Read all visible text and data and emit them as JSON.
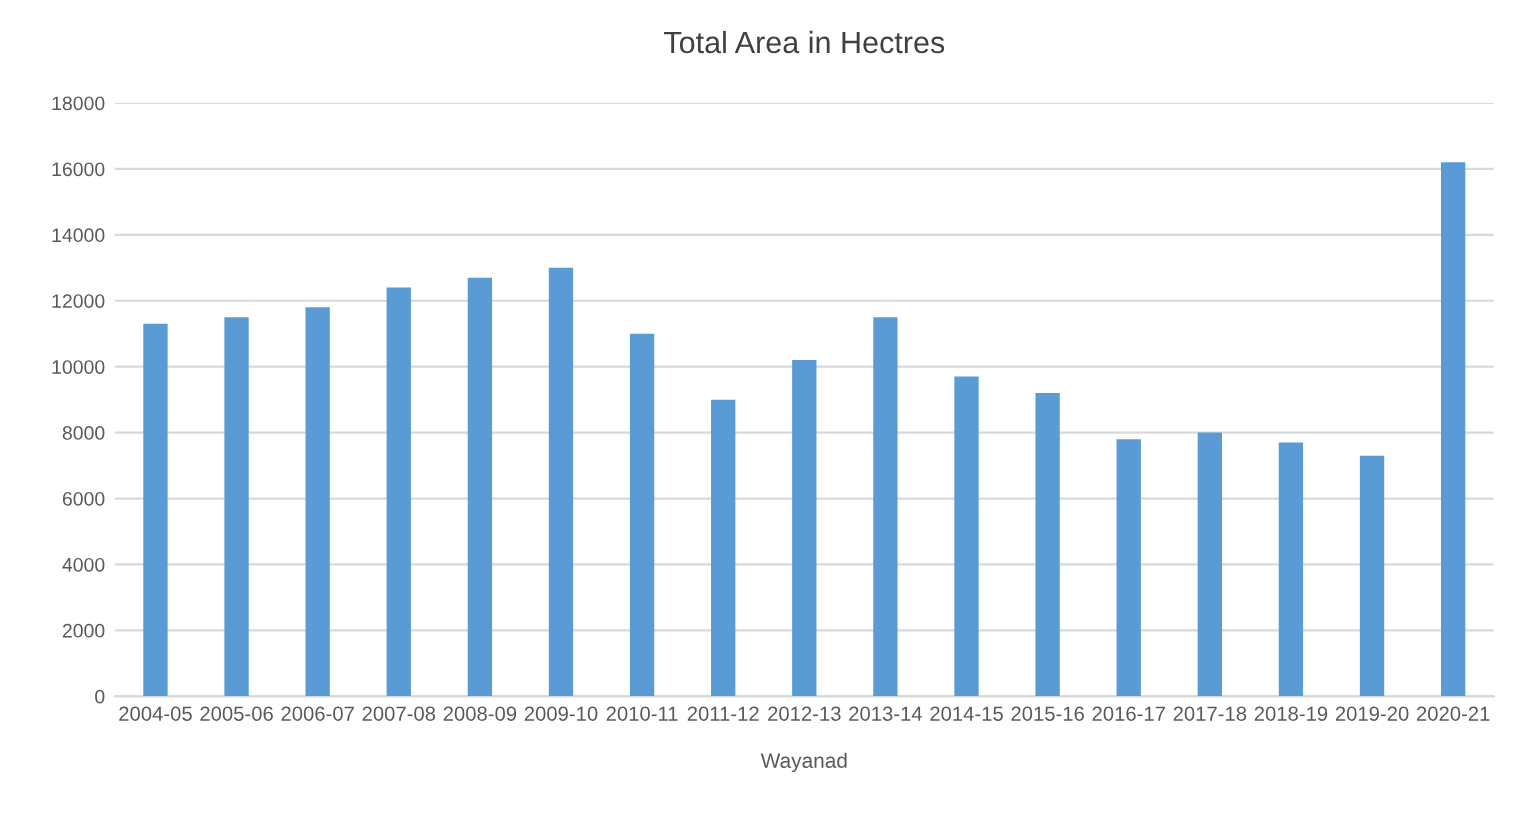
{
  "chart_data": {
    "type": "bar",
    "title": "Total Area in Hectres",
    "xlabel": "Wayanad",
    "categories": [
      "2004-05",
      "2005-06",
      "2006-07",
      "2007-08",
      "2008-09",
      "2009-10",
      "2010-11",
      "2011-12",
      "2012-13",
      "2013-14",
      "2014-15",
      "2015-16",
      "2016-17",
      "2017-18",
      "2018-19",
      "2019-20",
      "2020-21"
    ],
    "values": [
      11300,
      11500,
      11800,
      12400,
      12700,
      13000,
      11000,
      9000,
      10200,
      11500,
      9700,
      9200,
      7800,
      8000,
      7700,
      7300,
      16200
    ],
    "color": "#5b9bd5",
    "ylim": [
      0,
      18000
    ],
    "yticks": [
      0,
      2000,
      4000,
      6000,
      8000,
      10000,
      12000,
      14000,
      16000,
      18000
    ],
    "grid": "y"
  }
}
